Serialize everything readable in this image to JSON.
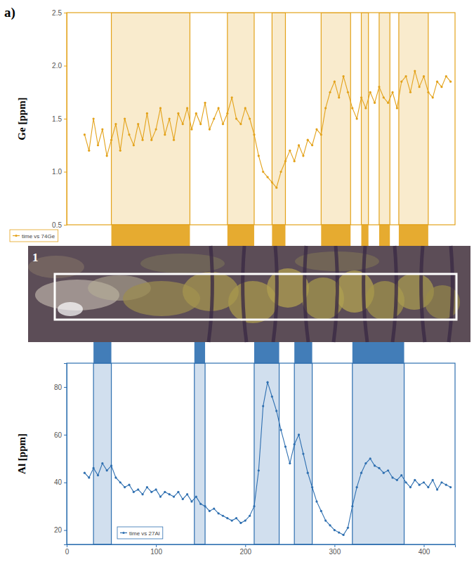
{
  "figure": {
    "label": "a)",
    "image_label": "1"
  },
  "chart_data": [
    {
      "type": "line",
      "y_label": "Ge [ppm]",
      "x": [
        20,
        25,
        30,
        35,
        40,
        45,
        50,
        55,
        60,
        65,
        70,
        75,
        80,
        85,
        90,
        95,
        100,
        105,
        110,
        115,
        120,
        125,
        130,
        135,
        140,
        145,
        150,
        155,
        160,
        165,
        170,
        175,
        180,
        185,
        190,
        195,
        200,
        205,
        210,
        215,
        220,
        225,
        230,
        235,
        240,
        245,
        250,
        255,
        260,
        265,
        270,
        275,
        280,
        285,
        290,
        295,
        300,
        305,
        310,
        315,
        320,
        325,
        330,
        335,
        340,
        345,
        350,
        355,
        360,
        365,
        370,
        375,
        380,
        385,
        390,
        395,
        400,
        405,
        410,
        415,
        420,
        425,
        430
      ],
      "series": [
        {
          "name": "time vs 74Ge",
          "color": "#e3a21a",
          "marker": "circle",
          "values": [
            1.35,
            1.2,
            1.5,
            1.25,
            1.4,
            1.15,
            1.3,
            1.45,
            1.2,
            1.5,
            1.35,
            1.25,
            1.45,
            1.3,
            1.55,
            1.3,
            1.4,
            1.6,
            1.35,
            1.5,
            1.3,
            1.55,
            1.45,
            1.6,
            1.4,
            1.55,
            1.45,
            1.65,
            1.4,
            1.5,
            1.6,
            1.45,
            1.55,
            1.7,
            1.5,
            1.45,
            1.6,
            1.5,
            1.35,
            1.15,
            1.0,
            0.95,
            0.9,
            0.85,
            1.0,
            1.1,
            1.2,
            1.1,
            1.25,
            1.15,
            1.3,
            1.25,
            1.4,
            1.35,
            1.6,
            1.75,
            1.85,
            1.7,
            1.9,
            1.75,
            1.6,
            1.5,
            1.7,
            1.6,
            1.75,
            1.65,
            1.8,
            1.7,
            1.65,
            1.75,
            1.6,
            1.85,
            1.9,
            1.75,
            1.95,
            1.8,
            1.9,
            1.75,
            1.7,
            1.85,
            1.8,
            1.9,
            1.85
          ]
        }
      ],
      "highlight_ranges": [
        [
          50,
          138
        ],
        [
          180,
          210
        ],
        [
          230,
          245
        ],
        [
          285,
          318
        ],
        [
          330,
          338
        ],
        [
          350,
          362
        ],
        [
          372,
          405
        ]
      ],
      "xlim": [
        0,
        435
      ],
      "ylim": [
        0.5,
        2.5
      ],
      "yticks": [
        {
          "value": 0.5,
          "label": "0.5"
        },
        {
          "value": 1,
          "label": "1.0"
        },
        {
          "value": 1.5,
          "label": "1.5"
        },
        {
          "value": 2,
          "label": "2.0"
        },
        {
          "value": 2.5,
          "label": "2.5"
        }
      ],
      "tick_labels": "y",
      "legend": "bottom-left"
    },
    {
      "type": "line",
      "y_label": "Al [ppm]",
      "x": [
        20,
        25,
        30,
        35,
        40,
        45,
        50,
        55,
        60,
        65,
        70,
        75,
        80,
        85,
        90,
        95,
        100,
        105,
        110,
        115,
        120,
        125,
        130,
        135,
        140,
        145,
        150,
        155,
        160,
        165,
        170,
        175,
        180,
        185,
        190,
        195,
        200,
        205,
        210,
        215,
        220,
        225,
        230,
        235,
        240,
        245,
        250,
        255,
        260,
        265,
        270,
        275,
        280,
        285,
        290,
        295,
        300,
        305,
        310,
        315,
        320,
        325,
        330,
        335,
        340,
        345,
        350,
        355,
        360,
        365,
        370,
        375,
        380,
        385,
        390,
        395,
        400,
        405,
        410,
        415,
        420,
        425,
        430
      ],
      "series": [
        {
          "name": "time vs 27Al",
          "color": "#2e6fb0",
          "marker": "circle",
          "values": [
            44,
            42,
            46,
            43,
            48,
            45,
            47,
            42,
            40,
            38,
            39,
            36,
            37,
            35,
            38,
            36,
            37,
            34,
            36,
            35,
            34,
            36,
            33,
            35,
            32,
            34,
            31,
            30,
            28,
            29,
            27,
            26,
            25,
            24,
            25,
            23,
            24,
            26,
            30,
            45,
            72,
            82,
            76,
            70,
            62,
            55,
            48,
            56,
            60,
            52,
            44,
            38,
            32,
            28,
            24,
            22,
            20,
            19,
            18,
            21,
            30,
            38,
            44,
            48,
            50,
            47,
            46,
            44,
            45,
            42,
            41,
            43,
            40,
            38,
            41,
            39,
            40,
            38,
            41,
            37,
            40,
            39,
            38
          ]
        }
      ],
      "highlight_ranges": [
        [
          30,
          50
        ],
        [
          143,
          155
        ],
        [
          210,
          238
        ],
        [
          255,
          275
        ],
        [
          320,
          378
        ]
      ],
      "xlim": [
        0,
        435
      ],
      "ylim": [
        14,
        90
      ],
      "xticks": [
        0,
        100,
        200,
        300,
        400
      ],
      "yticks": [
        20,
        40,
        60,
        80
      ],
      "legend": "bottom-left"
    }
  ]
}
